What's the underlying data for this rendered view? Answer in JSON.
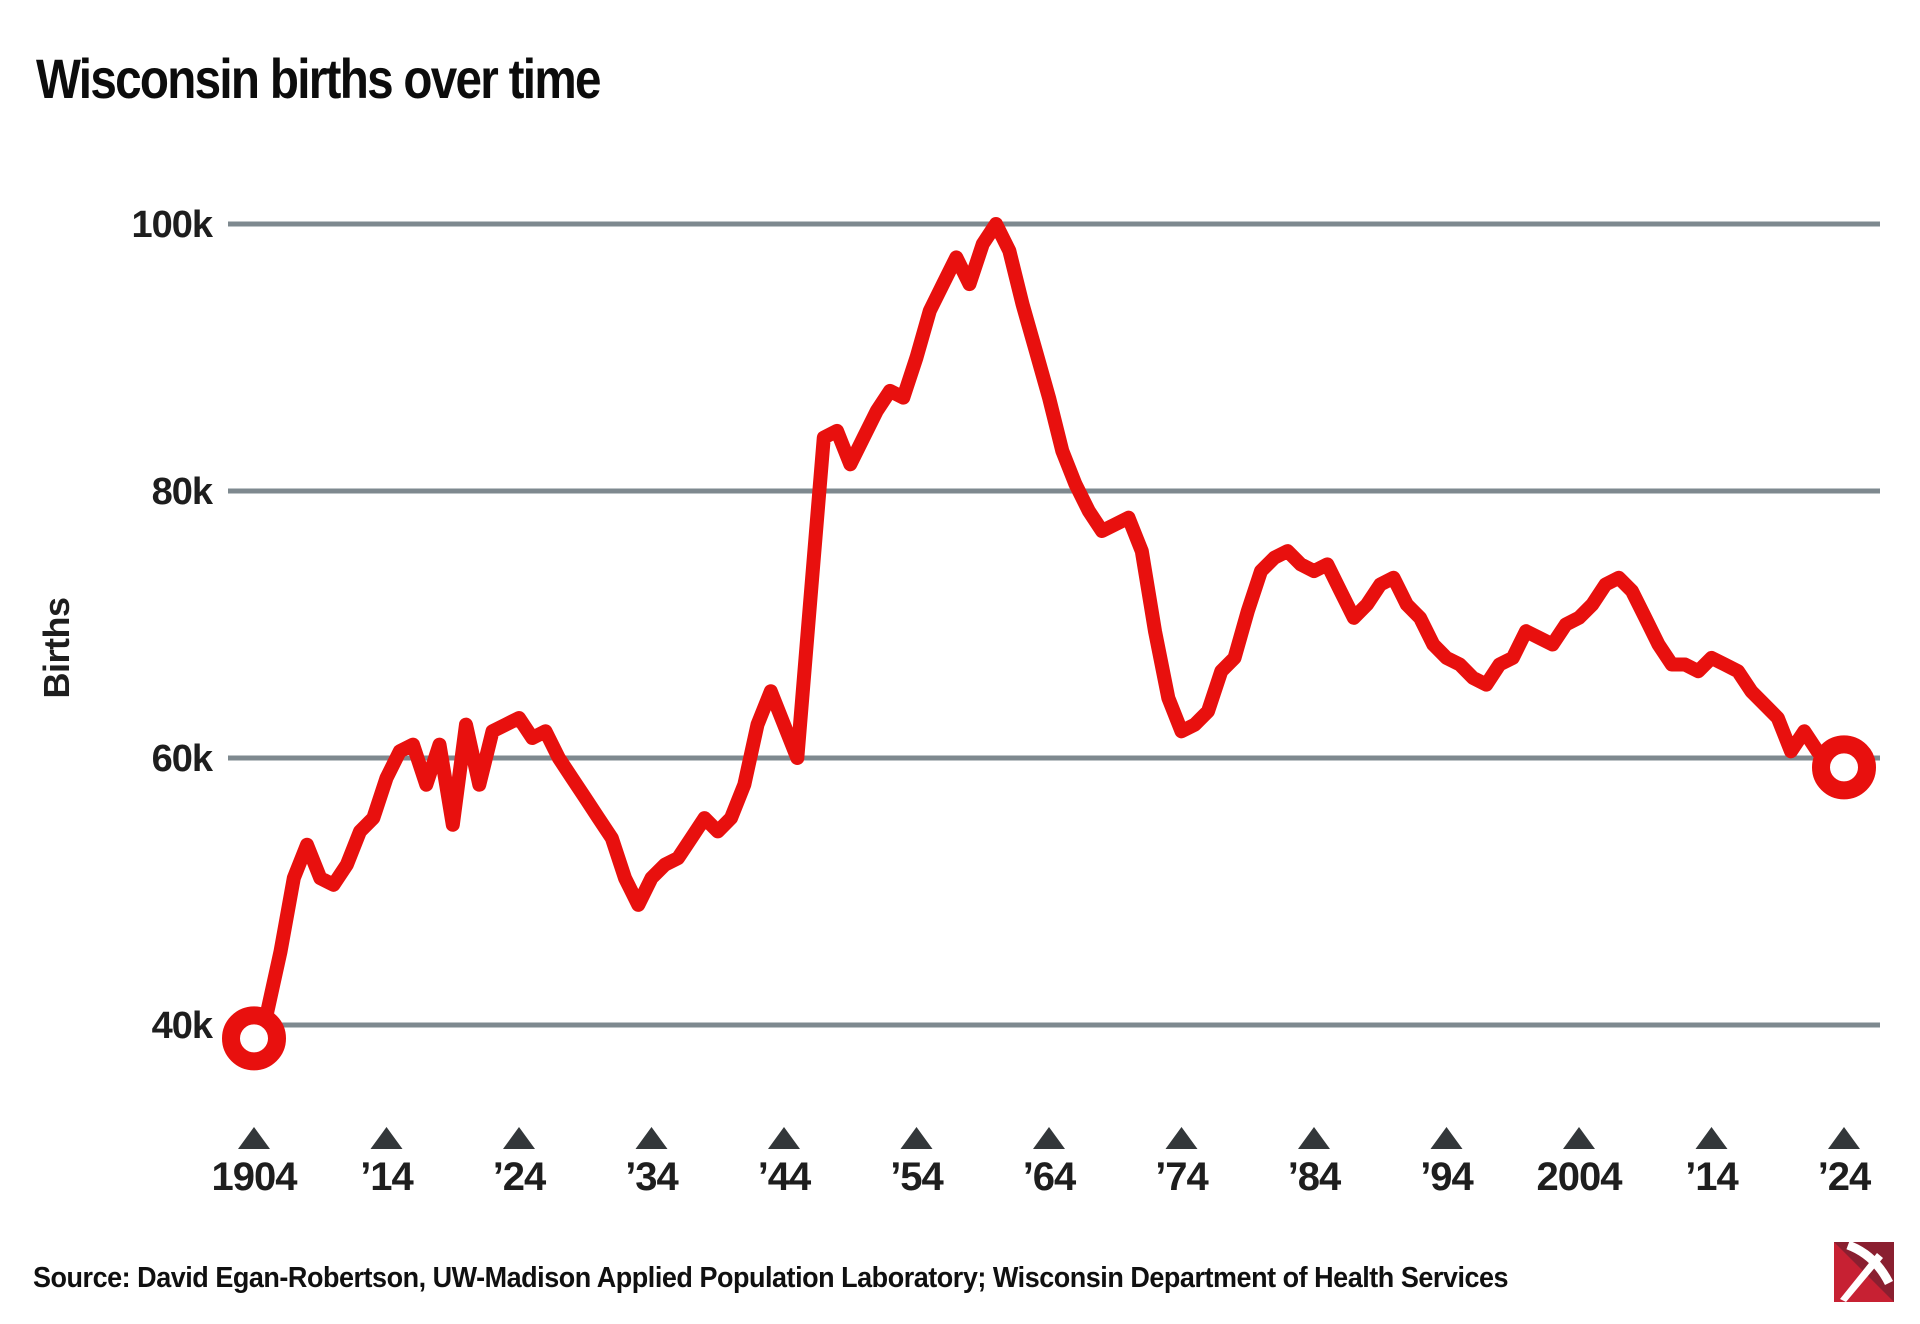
{
  "header": {
    "title": "Wisconsin births over time"
  },
  "footer": {
    "source": "Source: David Egan-Robertson, UW-Madison Applied Population Laboratory; Wisconsin Department of Health Services"
  },
  "logo": {
    "bright_red": "#c72133",
    "dark_red": "#8a1f30",
    "pick_white": "#ffffff"
  },
  "chart_data": {
    "type": "line",
    "title": "Wisconsin births over time",
    "xlabel": "",
    "ylabel": "Births",
    "unit": "thousands of births",
    "grid": "horizontal-only",
    "legend": "none",
    "line_color": "#e8100e",
    "grid_color": "#7e898f",
    "tick_marker_color": "#33373a",
    "label_color": "#1e1e1e",
    "endpoint_marker": "open-circle",
    "ylim_thousands": [
      36,
      103
    ],
    "y_ticks": [
      {
        "value": 100,
        "label": "100k"
      },
      {
        "value": 80,
        "label": "80k"
      },
      {
        "value": 60,
        "label": "60k"
      },
      {
        "value": 40,
        "label": "40k"
      }
    ],
    "x_ticks": [
      {
        "year": 1904,
        "label": "1904"
      },
      {
        "year": 1914,
        "label": "’14"
      },
      {
        "year": 1924,
        "label": "’24"
      },
      {
        "year": 1934,
        "label": "’34"
      },
      {
        "year": 1944,
        "label": "’44"
      },
      {
        "year": 1954,
        "label": "’54"
      },
      {
        "year": 1964,
        "label": "’64"
      },
      {
        "year": 1974,
        "label": "’74"
      },
      {
        "year": 1984,
        "label": "’84"
      },
      {
        "year": 1994,
        "label": "’94"
      },
      {
        "year": 2004,
        "label": "2004"
      },
      {
        "year": 2014,
        "label": "’14"
      },
      {
        "year": 2024,
        "label": "’24"
      }
    ],
    "start_year": 1904,
    "end_year": 2024,
    "values_thousands": [
      39.0,
      41.0,
      45.5,
      51.0,
      53.5,
      51.0,
      50.5,
      52.0,
      54.5,
      55.5,
      58.5,
      60.5,
      61.0,
      58.0,
      61.0,
      55.0,
      62.5,
      58.0,
      62.0,
      62.5,
      63.0,
      61.5,
      62.0,
      60.0,
      58.5,
      57.0,
      55.5,
      54.0,
      51.0,
      49.0,
      51.0,
      52.0,
      52.5,
      54.0,
      55.5,
      54.5,
      55.5,
      58.0,
      62.5,
      65.0,
      62.5,
      60.0,
      72.0,
      84.0,
      84.5,
      82.0,
      84.0,
      86.0,
      87.5,
      87.0,
      90.0,
      93.5,
      95.5,
      97.5,
      95.5,
      98.5,
      100.0,
      98.0,
      94.0,
      90.5,
      87.0,
      83.0,
      80.5,
      78.5,
      77.0,
      77.5,
      78.0,
      75.5,
      69.5,
      64.5,
      62.0,
      62.5,
      63.5,
      66.5,
      67.5,
      71.0,
      74.0,
      75.0,
      75.5,
      74.5,
      74.0,
      74.5,
      72.5,
      70.5,
      71.5,
      73.0,
      73.5,
      71.5,
      70.5,
      68.5,
      67.5,
      67.0,
      66.0,
      65.5,
      67.0,
      67.5,
      69.5,
      69.0,
      68.5,
      70.0,
      70.5,
      71.5,
      73.0,
      73.5,
      72.5,
      70.5,
      68.5,
      67.0,
      67.0,
      66.5,
      67.5,
      67.0,
      66.5,
      65.0,
      64.0,
      63.0,
      60.5,
      62.0,
      60.5,
      59.5,
      59.3
    ]
  }
}
